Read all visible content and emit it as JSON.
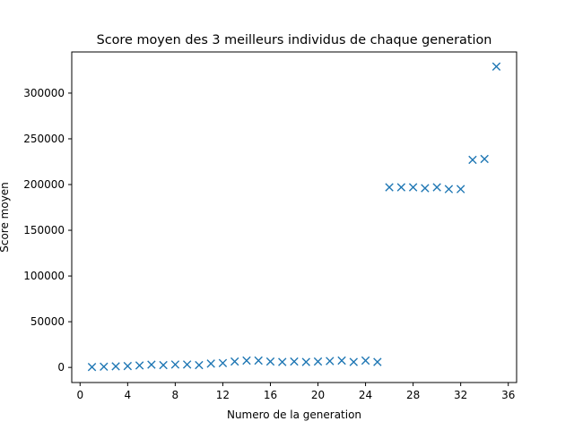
{
  "chart_data": {
    "type": "scatter",
    "title": "Score moyen des 3 meilleurs individus de chaque generation",
    "xlabel": "Numero de la generation",
    "ylabel": "Score moyen",
    "xlim": [
      -0.7,
      36.7
    ],
    "ylim": [
      -16500,
      345000
    ],
    "xticks": [
      0,
      4,
      8,
      12,
      16,
      20,
      24,
      28,
      32,
      36
    ],
    "yticks": [
      0,
      50000,
      100000,
      150000,
      200000,
      250000,
      300000
    ],
    "marker": "x",
    "color": "#1f77b4",
    "grid": false,
    "series": [
      {
        "x": [
          1,
          2,
          3,
          4,
          5,
          6,
          7,
          8,
          9,
          10,
          11,
          12,
          13,
          14,
          15,
          16,
          17,
          18,
          19,
          20,
          21,
          22,
          23,
          24,
          25,
          26,
          27,
          28,
          29,
          30,
          31,
          32,
          33,
          34,
          35
        ],
        "y": [
          500,
          800,
          1200,
          1500,
          2200,
          3000,
          2500,
          3200,
          3200,
          2500,
          4200,
          4800,
          6500,
          7500,
          7500,
          6500,
          6000,
          6500,
          6000,
          6500,
          7000,
          7500,
          6000,
          7500,
          6000,
          197000,
          197000,
          197000,
          196000,
          197000,
          195000,
          195000,
          227000,
          228000,
          329000
        ]
      }
    ]
  }
}
